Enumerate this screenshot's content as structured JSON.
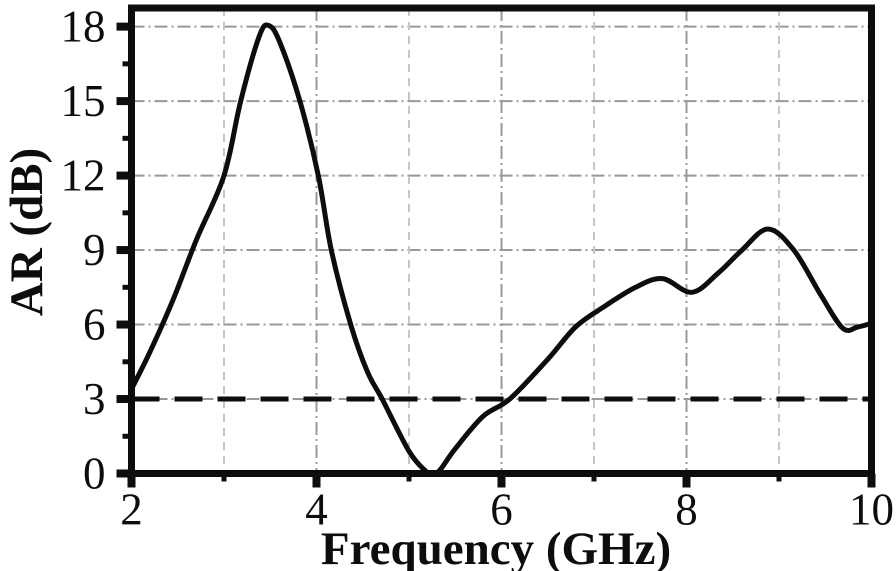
{
  "figure": {
    "x_axis_title": "Frequency (GHz)",
    "y_axis_title": "AR (dB)"
  },
  "chart_data": {
    "type": "line",
    "title": "",
    "xlabel": "Frequency (GHz)",
    "ylabel": "AR (dB)",
    "xlim": [
      2,
      10
    ],
    "ylim": [
      0,
      18.75
    ],
    "x_major_ticks": [
      2,
      4,
      6,
      8,
      10
    ],
    "x_minor_ticks": [
      3,
      5,
      7,
      9
    ],
    "y_major_ticks": [
      0,
      3,
      6,
      9,
      12,
      15,
      18
    ],
    "y_minor_ticks": [
      1.5,
      4.5,
      7.5,
      10.5,
      13.5,
      16.5
    ],
    "x_tick_labels": [
      "2",
      "4",
      "6",
      "8",
      "10"
    ],
    "y_tick_labels": [
      "0",
      "3",
      "6",
      "9",
      "12",
      "15",
      "18"
    ],
    "grid": {
      "major_style": "dash-dot",
      "major_color": "#989898",
      "minor_style": "dashed",
      "minor_color": "#c6c6c6",
      "grid_on": true
    },
    "legend": null,
    "threshold_line": {
      "y": 3,
      "style": "dashed",
      "color": "#0d0d0d"
    },
    "series": [
      {
        "name": "AR",
        "color": "#0d0d0d",
        "points": [
          [
            2.0,
            3.4
          ],
          [
            2.2,
            4.9
          ],
          [
            2.45,
            7.0
          ],
          [
            2.7,
            9.4
          ],
          [
            3.0,
            12.0
          ],
          [
            3.18,
            15.0
          ],
          [
            3.38,
            17.6
          ],
          [
            3.48,
            18.05
          ],
          [
            3.6,
            17.4
          ],
          [
            3.82,
            15.0
          ],
          [
            4.02,
            12.0
          ],
          [
            4.16,
            9.0
          ],
          [
            4.37,
            6.0
          ],
          [
            4.55,
            4.1
          ],
          [
            4.71,
            3.0
          ],
          [
            5.0,
            0.9
          ],
          [
            5.18,
            0.1
          ],
          [
            5.25,
            0.0
          ],
          [
            5.33,
            0.12
          ],
          [
            5.5,
            1.0
          ],
          [
            5.8,
            2.3
          ],
          [
            6.09,
            3.0
          ],
          [
            6.5,
            4.6
          ],
          [
            6.8,
            5.9
          ],
          [
            7.1,
            6.7
          ],
          [
            7.45,
            7.5
          ],
          [
            7.74,
            7.85
          ],
          [
            8.06,
            7.3
          ],
          [
            8.35,
            8.1
          ],
          [
            8.6,
            9.0
          ],
          [
            8.88,
            9.85
          ],
          [
            9.16,
            9.0
          ],
          [
            9.45,
            7.2
          ],
          [
            9.69,
            5.85
          ],
          [
            9.85,
            5.9
          ],
          [
            10.0,
            6.05
          ]
        ]
      }
    ]
  },
  "colors": {
    "background": "#ffffff",
    "frame": "#0d0d0d",
    "curve": "#0d0d0d",
    "text": "#0d0d0d"
  }
}
